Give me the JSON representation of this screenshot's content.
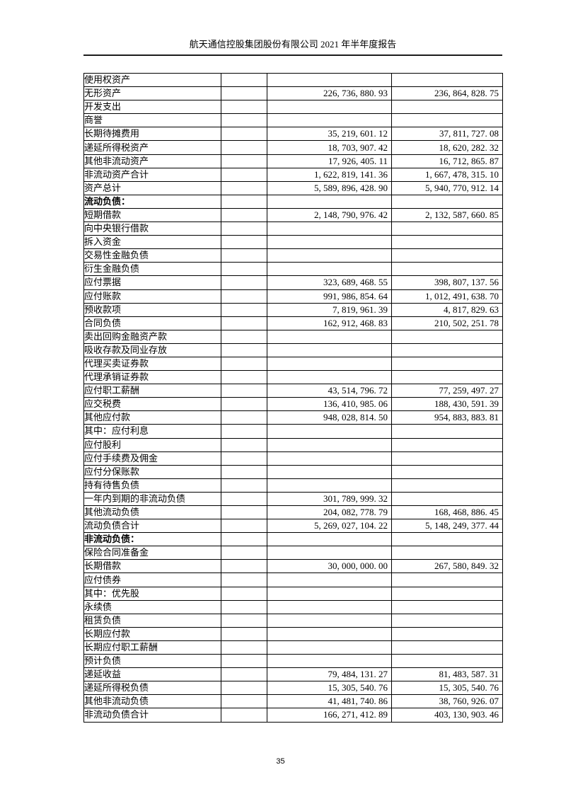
{
  "header": {
    "title": "航天通信控股集团股份有限公司 2021 年半年度报告"
  },
  "footer": {
    "page_number": "35"
  },
  "table": {
    "rows": [
      {
        "label": "使用权资产",
        "indent": 1,
        "bold": false,
        "current": "",
        "prior": ""
      },
      {
        "label": "无形资产",
        "indent": 1,
        "bold": false,
        "current": "226, 736, 880. 93",
        "prior": "236, 864, 828. 75"
      },
      {
        "label": "开发支出",
        "indent": 1,
        "bold": false,
        "current": "",
        "prior": ""
      },
      {
        "label": "商誉",
        "indent": 1,
        "bold": false,
        "current": "",
        "prior": ""
      },
      {
        "label": "长期待摊费用",
        "indent": 1,
        "bold": false,
        "current": "35, 219, 601. 12",
        "prior": "37, 811, 727. 08"
      },
      {
        "label": "递延所得税资产",
        "indent": 1,
        "bold": false,
        "current": "18, 703, 907. 42",
        "prior": "18, 620, 282. 32"
      },
      {
        "label": "其他非流动资产",
        "indent": 1,
        "bold": false,
        "current": "17, 926, 405. 11",
        "prior": "16, 712, 865. 87"
      },
      {
        "label": "非流动资产合计",
        "indent": 2,
        "bold": false,
        "current": "1, 622, 819, 141. 36",
        "prior": "1, 667, 478, 315. 10"
      },
      {
        "label": "资产总计",
        "indent": 3,
        "bold": false,
        "current": "5, 589, 896, 428. 90",
        "prior": "5, 940, 770, 912. 14"
      },
      {
        "label": "流动负债：",
        "indent": 0,
        "bold": true,
        "current": "",
        "prior": ""
      },
      {
        "label": "短期借款",
        "indent": 1,
        "bold": false,
        "current": "2, 148, 790, 976. 42",
        "prior": "2, 132, 587, 660. 85"
      },
      {
        "label": "向中央银行借款",
        "indent": 1,
        "bold": false,
        "current": "",
        "prior": ""
      },
      {
        "label": "拆入资金",
        "indent": 1,
        "bold": false,
        "current": "",
        "prior": ""
      },
      {
        "label": "交易性金融负债",
        "indent": 1,
        "bold": false,
        "current": "",
        "prior": ""
      },
      {
        "label": "衍生金融负债",
        "indent": 1,
        "bold": false,
        "current": "",
        "prior": ""
      },
      {
        "label": "应付票据",
        "indent": 1,
        "bold": false,
        "current": "323, 689, 468. 55",
        "prior": "398, 807, 137. 56"
      },
      {
        "label": "应付账款",
        "indent": 1,
        "bold": false,
        "current": "991, 986, 854. 64",
        "prior": "1, 012, 491, 638. 70"
      },
      {
        "label": "预收款项",
        "indent": 1,
        "bold": false,
        "current": "7, 819, 961. 39",
        "prior": "4, 817, 829. 63"
      },
      {
        "label": "合同负债",
        "indent": 1,
        "bold": false,
        "current": "162, 912, 468. 83",
        "prior": "210, 502, 251. 78"
      },
      {
        "label": "卖出回购金融资产款",
        "indent": 1,
        "bold": false,
        "current": "",
        "prior": ""
      },
      {
        "label": "吸收存款及同业存放",
        "indent": 1,
        "bold": false,
        "current": "",
        "prior": ""
      },
      {
        "label": "代理买卖证券款",
        "indent": 1,
        "bold": false,
        "current": "",
        "prior": ""
      },
      {
        "label": "代理承销证券款",
        "indent": 1,
        "bold": false,
        "current": "",
        "prior": ""
      },
      {
        "label": "应付职工薪酬",
        "indent": 1,
        "bold": false,
        "current": "43, 514, 796. 72",
        "prior": "77, 259, 497. 27"
      },
      {
        "label": "应交税费",
        "indent": 1,
        "bold": false,
        "current": "136, 410, 985. 06",
        "prior": "188, 430, 591. 39"
      },
      {
        "label": "其他应付款",
        "indent": 1,
        "bold": false,
        "current": "948, 028, 814. 50",
        "prior": "954, 883, 883. 81"
      },
      {
        "label": "其中：应付利息",
        "indent": 1,
        "bold": false,
        "current": "",
        "prior": ""
      },
      {
        "label": "应付股利",
        "indent": 4,
        "bold": false,
        "current": "",
        "prior": ""
      },
      {
        "label": "应付手续费及佣金",
        "indent": 1,
        "bold": false,
        "current": "",
        "prior": ""
      },
      {
        "label": "应付分保账款",
        "indent": 1,
        "bold": false,
        "current": "",
        "prior": ""
      },
      {
        "label": "持有待售负债",
        "indent": 1,
        "bold": false,
        "current": "",
        "prior": ""
      },
      {
        "label": "一年内到期的非流动负债",
        "indent": 1,
        "bold": false,
        "current": "301, 789, 999. 32",
        "prior": ""
      },
      {
        "label": "其他流动负债",
        "indent": 1,
        "bold": false,
        "current": "204, 082, 778. 79",
        "prior": "168, 468, 886. 45"
      },
      {
        "label": "流动负债合计",
        "indent": 2,
        "bold": false,
        "current": "5, 269, 027, 104. 22",
        "prior": "5, 148, 249, 377. 44"
      },
      {
        "label": "非流动负债：",
        "indent": 0,
        "bold": true,
        "current": "",
        "prior": ""
      },
      {
        "label": "保险合同准备金",
        "indent": 1,
        "bold": false,
        "current": "",
        "prior": ""
      },
      {
        "label": "长期借款",
        "indent": 1,
        "bold": false,
        "current": "30, 000, 000. 00",
        "prior": "267, 580, 849. 32"
      },
      {
        "label": "应付债券",
        "indent": 1,
        "bold": false,
        "current": "",
        "prior": ""
      },
      {
        "label": "其中：优先股",
        "indent": 1,
        "bold": false,
        "current": "",
        "prior": ""
      },
      {
        "label": "永续债",
        "indent": 4,
        "bold": false,
        "current": "",
        "prior": ""
      },
      {
        "label": "租赁负债",
        "indent": 1,
        "bold": false,
        "current": "",
        "prior": ""
      },
      {
        "label": "长期应付款",
        "indent": 1,
        "bold": false,
        "current": "",
        "prior": ""
      },
      {
        "label": "长期应付职工薪酬",
        "indent": 1,
        "bold": false,
        "current": "",
        "prior": ""
      },
      {
        "label": "预计负债",
        "indent": 1,
        "bold": false,
        "current": "",
        "prior": ""
      },
      {
        "label": "递延收益",
        "indent": 1,
        "bold": false,
        "current": "79, 484, 131. 27",
        "prior": "81, 483, 587. 31"
      },
      {
        "label": "递延所得税负债",
        "indent": 1,
        "bold": false,
        "current": "15, 305, 540. 76",
        "prior": "15, 305, 540. 76"
      },
      {
        "label": "其他非流动负债",
        "indent": 1,
        "bold": false,
        "current": "41, 481, 740. 86",
        "prior": "38, 760, 926. 07"
      },
      {
        "label": "非流动负债合计",
        "indent": 2,
        "bold": false,
        "current": "166, 271, 412. 89",
        "prior": "403, 130, 903. 46"
      }
    ]
  }
}
